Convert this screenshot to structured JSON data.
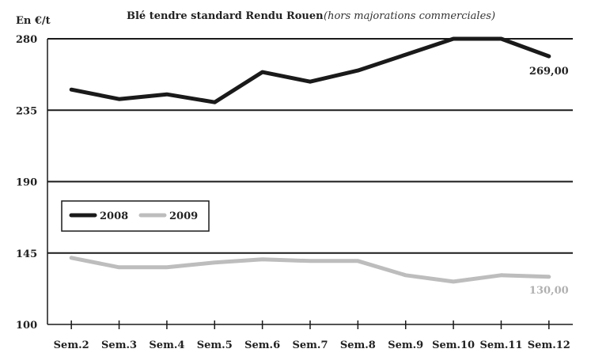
{
  "chart_data": {
    "type": "line",
    "title": "Blé tendre standard Rendu Rouen",
    "subtitle": "(hors majorations commerciales)",
    "ylabel": "En €/t",
    "xlabel": "",
    "categories": [
      "Sem.2",
      "Sem.3",
      "Sem.4",
      "Sem.5",
      "Sem.6",
      "Sem.7",
      "Sem.8",
      "Sem.9",
      "Sem.10",
      "Sem.11",
      "Sem.12"
    ],
    "ylim": [
      100,
      280
    ],
    "yticks": [
      100,
      145,
      190,
      235,
      280
    ],
    "grid": "horizontal",
    "legend_position": "left",
    "series": [
      {
        "name": "2008",
        "color": "#1a1a1a",
        "values": [
          248,
          242,
          245,
          240,
          259,
          253,
          260,
          270,
          280,
          280,
          269
        ],
        "end_label": "269,00"
      },
      {
        "name": "2009",
        "color": "#bdbdbd",
        "values": [
          142,
          136,
          136,
          139,
          141,
          140,
          140,
          131,
          127,
          131,
          130
        ],
        "end_label": "130,00"
      }
    ]
  }
}
